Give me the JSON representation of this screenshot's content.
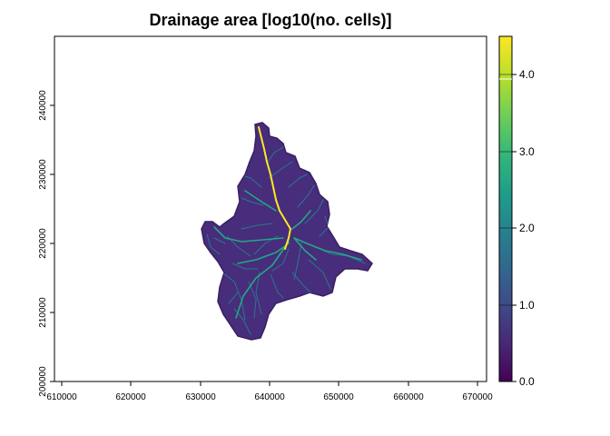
{
  "title": "Drainage area [log10(no. cells)]",
  "map": {
    "x_ticks": [
      "610000",
      "620000",
      "630000",
      "640000",
      "650000",
      "660000",
      "670000"
    ],
    "y_ticks": [
      "200000",
      "210000",
      "220000",
      "230000",
      "240000"
    ],
    "x_range": [
      609000,
      671000
    ],
    "y_range": [
      200000,
      250000
    ]
  },
  "colorbar": {
    "ticks": [
      "0.0",
      "1.0",
      "2.0",
      "3.0",
      "4.0"
    ],
    "range": [
      0,
      4.5
    ],
    "palette": [
      "#440154",
      "#482878",
      "#3e4a89",
      "#31688e",
      "#26828e",
      "#1f9e89",
      "#35b779",
      "#6ece58",
      "#b5de2b",
      "#fde725"
    ]
  },
  "colors": {
    "basin_fill": "#472d7b",
    "stream_low": "#2a788e",
    "stream_mid": "#22a884",
    "stream_main": "#fde725"
  }
}
